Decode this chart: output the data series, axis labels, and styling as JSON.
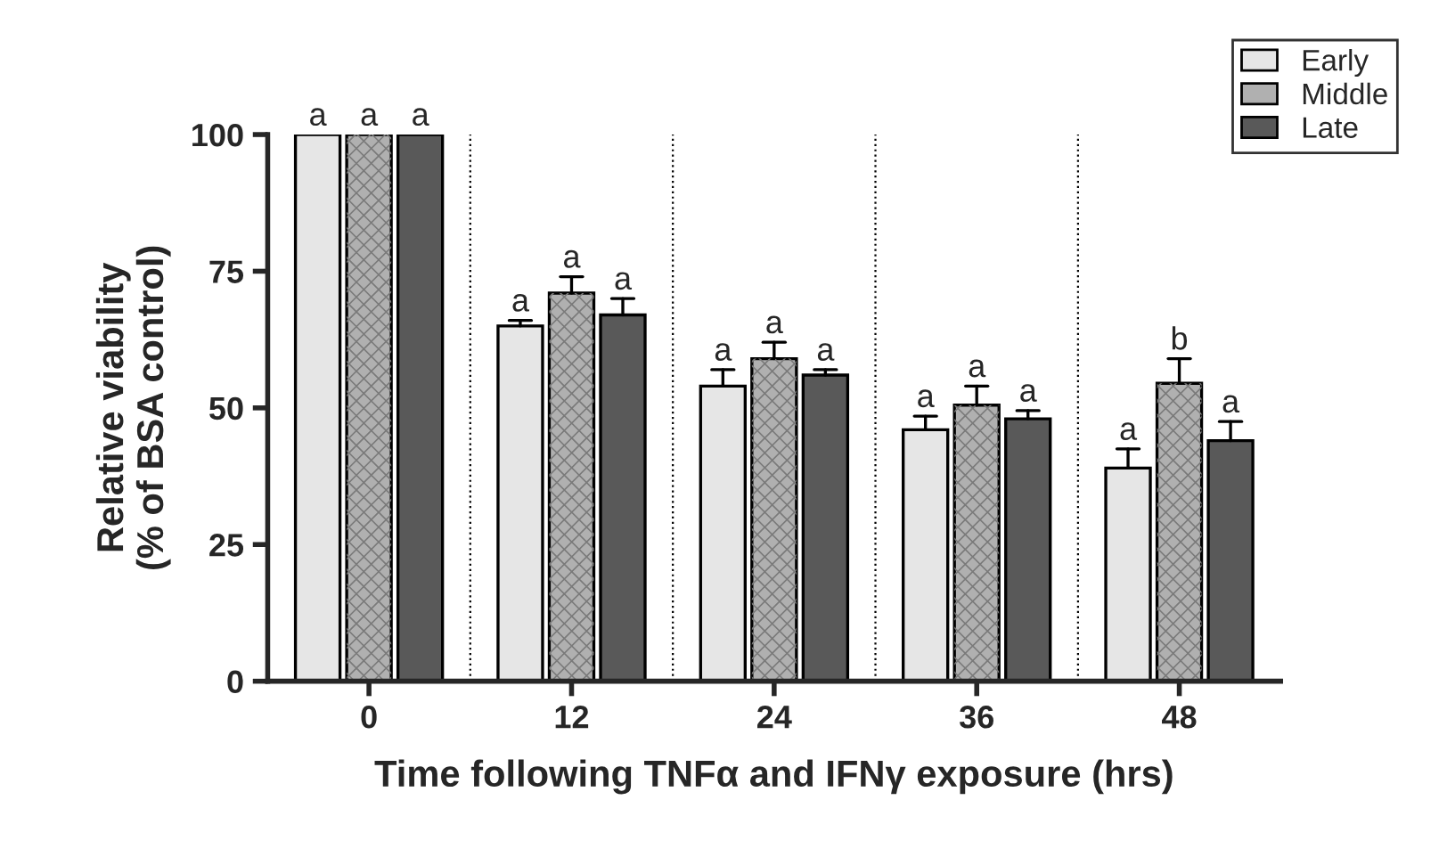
{
  "chart_data": {
    "type": "bar",
    "xlabel": "Time following TNFα and IFNγ exposure (hrs)",
    "ylabel": "Relative viability\n(% of BSA control)",
    "categories": [
      "0",
      "12",
      "24",
      "36",
      "48"
    ],
    "series": [
      {
        "name": "Early",
        "color": "#e6e6e6",
        "values": [
          100,
          65,
          54,
          46,
          39
        ],
        "errors": [
          null,
          [
            65,
            66
          ],
          [
            54,
            57
          ],
          [
            46,
            48.5
          ],
          [
            39,
            42.5
          ]
        ]
      },
      {
        "name": "Middle",
        "color": "#b0b0b0",
        "values": [
          100,
          71,
          59,
          50.5,
          54.5
        ],
        "errors": [
          null,
          [
            71,
            74
          ],
          [
            59,
            62
          ],
          [
            50.5,
            54
          ],
          [
            54.5,
            59
          ]
        ]
      },
      {
        "name": "Late",
        "color": "#595959",
        "values": [
          100,
          67,
          56,
          48,
          44
        ],
        "errors": [
          null,
          [
            67,
            70
          ],
          [
            56,
            57
          ],
          [
            48,
            49.5
          ],
          [
            44,
            47.5
          ]
        ]
      }
    ],
    "ylim": [
      0,
      100
    ],
    "yticks": [
      0,
      25,
      50,
      75,
      100
    ],
    "grid": false,
    "legend": "top right",
    "annotations": [
      "a",
      "a",
      "a",
      "a",
      "a",
      "a",
      "a",
      "a",
      "a",
      "a",
      "a",
      "a",
      "a",
      "b",
      "a"
    ]
  }
}
